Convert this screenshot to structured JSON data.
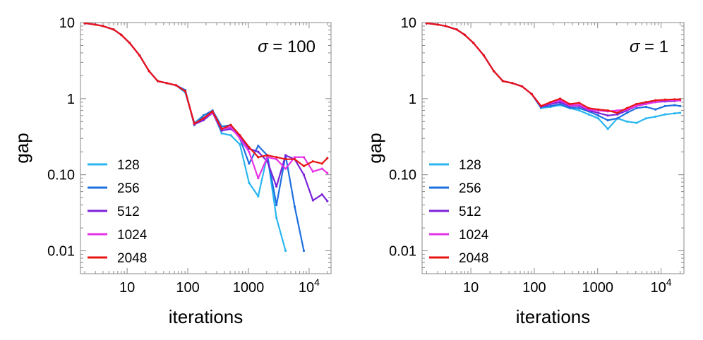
{
  "chart_data": [
    {
      "type": "line",
      "xscale": "log",
      "yscale": "log",
      "xlabel": "iterations",
      "ylabel": "gap",
      "annotation": {
        "symbol": "σ",
        "text": " = 100"
      },
      "xlim": [
        1.7,
        23000
      ],
      "ylim": [
        0.005,
        10
      ],
      "xticks": [
        {
          "v": 10,
          "label": "10"
        },
        {
          "v": 100,
          "label": "100"
        },
        {
          "v": 1000,
          "label": "1000"
        },
        {
          "v": 10000,
          "base": "10",
          "exp": "4"
        }
      ],
      "yticks": [
        {
          "v": 10,
          "label": "10"
        },
        {
          "v": 1,
          "label": "1"
        },
        {
          "v": 0.1,
          "label": "0.10"
        },
        {
          "v": 0.01,
          "label": "0.01"
        }
      ],
      "series": [
        {
          "name": "128",
          "color": "#29b6f0",
          "x": [
            2,
            3,
            4,
            6,
            8,
            11,
            16,
            23,
            32,
            45,
            64,
            91,
            128,
            181,
            256,
            362,
            512,
            724,
            1024,
            1448,
            2048,
            2896,
            4096
          ],
          "y": [
            9.8,
            9.4,
            9.0,
            8.1,
            6.9,
            5.4,
            3.7,
            2.3,
            1.7,
            1.6,
            1.5,
            1.2,
            0.48,
            0.6,
            0.68,
            0.35,
            0.33,
            0.25,
            0.078,
            0.052,
            0.18,
            0.027,
            0.01
          ]
        },
        {
          "name": "256",
          "color": "#1e6fe0",
          "x": [
            2,
            3,
            4,
            6,
            8,
            11,
            16,
            23,
            32,
            45,
            64,
            91,
            128,
            181,
            256,
            362,
            512,
            724,
            1024,
            1448,
            2048,
            2896,
            4096,
            5793,
            8192
          ],
          "y": [
            9.8,
            9.4,
            9.0,
            8.1,
            6.9,
            5.4,
            3.7,
            2.3,
            1.7,
            1.6,
            1.5,
            1.3,
            0.45,
            0.6,
            0.7,
            0.43,
            0.45,
            0.3,
            0.14,
            0.24,
            0.18,
            0.04,
            0.18,
            0.038,
            0.01
          ]
        },
        {
          "name": "512",
          "color": "#7b22d8",
          "x": [
            2,
            3,
            4,
            6,
            8,
            11,
            16,
            23,
            32,
            45,
            64,
            91,
            128,
            181,
            256,
            362,
            512,
            724,
            1024,
            1448,
            2048,
            2896,
            4096,
            5793,
            8192,
            11585,
            16384,
            20000
          ],
          "y": [
            9.8,
            9.4,
            9.0,
            8.1,
            6.9,
            5.4,
            3.7,
            2.3,
            1.7,
            1.6,
            1.5,
            1.25,
            0.46,
            0.52,
            0.65,
            0.38,
            0.4,
            0.32,
            0.22,
            0.2,
            0.15,
            0.07,
            0.18,
            0.16,
            0.1,
            0.046,
            0.055,
            0.045
          ]
        },
        {
          "name": "1024",
          "color": "#e632e6",
          "x": [
            2,
            3,
            4,
            6,
            8,
            11,
            16,
            23,
            32,
            45,
            64,
            91,
            128,
            181,
            256,
            362,
            512,
            724,
            1024,
            1448,
            2048,
            2896,
            4096,
            5793,
            8192,
            11585,
            16384,
            20000
          ],
          "y": [
            9.8,
            9.4,
            9.0,
            8.1,
            6.9,
            5.4,
            3.7,
            2.3,
            1.7,
            1.6,
            1.5,
            1.25,
            0.47,
            0.55,
            0.66,
            0.4,
            0.42,
            0.3,
            0.2,
            0.09,
            0.17,
            0.16,
            0.12,
            0.17,
            0.17,
            0.11,
            0.12,
            0.105
          ]
        },
        {
          "name": "2048",
          "color": "#e81414",
          "x": [
            2,
            3,
            4,
            6,
            8,
            11,
            16,
            23,
            32,
            45,
            64,
            91,
            128,
            181,
            256,
            362,
            512,
            724,
            1024,
            1448,
            2048,
            2896,
            4096,
            5793,
            8192,
            11585,
            16384,
            20000
          ],
          "y": [
            9.8,
            9.4,
            9.0,
            8.1,
            6.9,
            5.4,
            3.7,
            2.3,
            1.7,
            1.6,
            1.5,
            1.25,
            0.47,
            0.55,
            0.68,
            0.4,
            0.45,
            0.33,
            0.23,
            0.17,
            0.18,
            0.17,
            0.16,
            0.16,
            0.13,
            0.15,
            0.14,
            0.165
          ]
        }
      ]
    },
    {
      "type": "line",
      "xscale": "log",
      "yscale": "log",
      "xlabel": "iterations",
      "ylabel": "gap",
      "annotation": {
        "symbol": "σ",
        "text": " = 1"
      },
      "xlim": [
        1.7,
        23000
      ],
      "ylim": [
        0.005,
        10
      ],
      "xticks": [
        {
          "v": 10,
          "label": "10"
        },
        {
          "v": 100,
          "label": "100"
        },
        {
          "v": 1000,
          "label": "1000"
        },
        {
          "v": 10000,
          "base": "10",
          "exp": "4"
        }
      ],
      "yticks": [
        {
          "v": 10,
          "label": "10"
        },
        {
          "v": 1,
          "label": "1"
        },
        {
          "v": 0.1,
          "label": "0.10"
        },
        {
          "v": 0.01,
          "label": "0.01"
        }
      ],
      "series": [
        {
          "name": "128",
          "color": "#29b6f0",
          "x": [
            2,
            3,
            4,
            6,
            8,
            11,
            16,
            23,
            32,
            45,
            64,
            91,
            128,
            181,
            256,
            362,
            512,
            724,
            1024,
            1448,
            2048,
            2896,
            4096,
            5793,
            8192,
            11585,
            16384,
            20000
          ],
          "y": [
            9.8,
            9.4,
            9.0,
            8.1,
            6.9,
            5.4,
            3.7,
            2.3,
            1.7,
            1.6,
            1.45,
            1.15,
            0.75,
            0.78,
            0.82,
            0.75,
            0.7,
            0.62,
            0.55,
            0.4,
            0.55,
            0.5,
            0.48,
            0.55,
            0.58,
            0.62,
            0.64,
            0.65
          ]
        },
        {
          "name": "256",
          "color": "#1e6fe0",
          "x": [
            2,
            3,
            4,
            6,
            8,
            11,
            16,
            23,
            32,
            45,
            64,
            91,
            128,
            181,
            256,
            362,
            512,
            724,
            1024,
            1448,
            2048,
            2896,
            4096,
            5793,
            8192,
            11585,
            16384,
            20000
          ],
          "y": [
            9.8,
            9.4,
            9.0,
            8.1,
            6.9,
            5.4,
            3.7,
            2.3,
            1.7,
            1.6,
            1.45,
            1.15,
            0.78,
            0.8,
            0.85,
            0.76,
            0.75,
            0.68,
            0.6,
            0.52,
            0.55,
            0.65,
            0.75,
            0.78,
            0.72,
            0.8,
            0.82,
            0.8
          ]
        },
        {
          "name": "512",
          "color": "#7b22d8",
          "x": [
            2,
            3,
            4,
            6,
            8,
            11,
            16,
            23,
            32,
            45,
            64,
            91,
            128,
            181,
            256,
            362,
            512,
            724,
            1024,
            1448,
            2048,
            2896,
            4096,
            5793,
            8192,
            11585,
            16384,
            20000
          ],
          "y": [
            9.8,
            9.4,
            9.0,
            8.1,
            6.9,
            5.4,
            3.7,
            2.3,
            1.7,
            1.6,
            1.45,
            1.15,
            0.78,
            0.85,
            0.9,
            0.8,
            0.8,
            0.7,
            0.65,
            0.6,
            0.62,
            0.7,
            0.8,
            0.88,
            0.9,
            0.92,
            0.93,
            0.95
          ]
        },
        {
          "name": "1024",
          "color": "#e632e6",
          "x": [
            2,
            3,
            4,
            6,
            8,
            11,
            16,
            23,
            32,
            45,
            64,
            91,
            128,
            181,
            256,
            362,
            512,
            724,
            1024,
            1448,
            2048,
            2896,
            4096,
            5793,
            8192,
            11585,
            16384,
            20000
          ],
          "y": [
            9.8,
            9.4,
            9.0,
            8.1,
            6.9,
            5.4,
            3.7,
            2.3,
            1.7,
            1.6,
            1.45,
            1.15,
            0.8,
            0.88,
            0.95,
            0.82,
            0.83,
            0.72,
            0.7,
            0.68,
            0.7,
            0.72,
            0.8,
            0.85,
            0.9,
            0.95,
            0.95,
            0.95
          ]
        },
        {
          "name": "2048",
          "color": "#e81414",
          "x": [
            2,
            3,
            4,
            6,
            8,
            11,
            16,
            23,
            32,
            45,
            64,
            91,
            128,
            181,
            256,
            362,
            512,
            724,
            1024,
            1448,
            2048,
            2896,
            4096,
            5793,
            8192,
            11585,
            16384,
            20000
          ],
          "y": [
            9.8,
            9.4,
            9.0,
            8.1,
            6.9,
            5.4,
            3.7,
            2.3,
            1.7,
            1.6,
            1.45,
            1.15,
            0.8,
            0.9,
            1.0,
            0.85,
            0.88,
            0.75,
            0.72,
            0.7,
            0.65,
            0.75,
            0.85,
            0.9,
            0.95,
            0.97,
            0.98,
            0.98
          ]
        }
      ]
    }
  ]
}
